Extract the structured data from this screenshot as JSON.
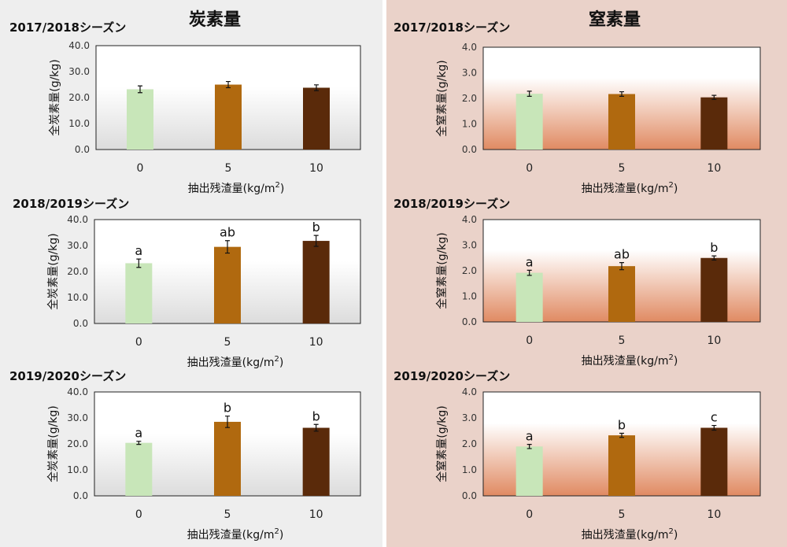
{
  "columns": [
    {
      "title": "炭素量",
      "gradient": [
        "#ffffff",
        "#dcdcdc"
      ]
    },
    {
      "title": "窒素量",
      "gradient": [
        "#ffffff",
        "#e08a62"
      ]
    }
  ],
  "bar_colors": [
    "#c8e6b9",
    "#b0690f",
    "#5a2a0a"
  ],
  "chart_data": [
    {
      "type": "bar",
      "title": "2017/2018シーズン",
      "column": 0,
      "categories": [
        "0",
        "5",
        "10"
      ],
      "values": [
        23.2,
        25.0,
        23.8
      ],
      "errors": [
        1.3,
        1.2,
        1.1
      ],
      "labels": [
        "",
        "",
        ""
      ],
      "ylim": [
        0,
        40
      ],
      "yticks": [
        "0.0",
        "10.0",
        "20.0",
        "30.0",
        "40.0"
      ],
      "ylabel": "全炭素量(g/kg)",
      "xlabel": "抽出残渣量(kg/m2)"
    },
    {
      "type": "bar",
      "title": "2018/2019シーズン",
      "column": 0,
      "categories": [
        "0",
        "5",
        "10"
      ],
      "values": [
        23.2,
        29.5,
        31.8
      ],
      "errors": [
        1.6,
        2.4,
        2.1
      ],
      "labels": [
        "a",
        "ab",
        "b"
      ],
      "ylim": [
        0,
        40
      ],
      "yticks": [
        "0.0",
        "10.0",
        "20.0",
        "30.0",
        "40.0"
      ],
      "ylabel": "全炭素量(g/kg)",
      "xlabel": "抽出残渣量(kg/m2)"
    },
    {
      "type": "bar",
      "title": "2019/2020シーズン",
      "column": 0,
      "categories": [
        "0",
        "5",
        "10"
      ],
      "values": [
        20.4,
        28.5,
        26.2
      ],
      "errors": [
        0.6,
        2.2,
        1.3
      ],
      "labels": [
        "a",
        "b",
        "b"
      ],
      "ylim": [
        0,
        40
      ],
      "yticks": [
        "0.0",
        "10.0",
        "20.0",
        "30.0",
        "40.0"
      ],
      "ylabel": "全炭素量(g/kg)",
      "xlabel": "抽出残渣量(kg/m2)"
    },
    {
      "type": "bar",
      "title": "2017/2018シーズン",
      "column": 1,
      "categories": [
        "0",
        "5",
        "10"
      ],
      "values": [
        2.18,
        2.17,
        2.04
      ],
      "errors": [
        0.1,
        0.09,
        0.08
      ],
      "labels": [
        "",
        "",
        ""
      ],
      "ylim": [
        0,
        4
      ],
      "yticks": [
        "0.0",
        "1.0",
        "2.0",
        "3.0",
        "4.0"
      ],
      "ylabel": "全窒素量(g/kg)",
      "xlabel": "抽出残渣量(kg/m2)"
    },
    {
      "type": "bar",
      "title": "2018/2019シーズン",
      "column": 1,
      "categories": [
        "0",
        "5",
        "10"
      ],
      "values": [
        1.92,
        2.18,
        2.5
      ],
      "errors": [
        0.1,
        0.14,
        0.08
      ],
      "labels": [
        "a",
        "ab",
        "b"
      ],
      "ylim": [
        0,
        4
      ],
      "yticks": [
        "0.0",
        "1.0",
        "2.0",
        "3.0",
        "4.0"
      ],
      "ylabel": "全窒素量(g/kg)",
      "xlabel": "抽出残渣量(kg/m2)"
    },
    {
      "type": "bar",
      "title": "2019/2020シーズン",
      "column": 1,
      "categories": [
        "0",
        "5",
        "10"
      ],
      "values": [
        1.9,
        2.33,
        2.62
      ],
      "errors": [
        0.08,
        0.08,
        0.09
      ],
      "labels": [
        "a",
        "b",
        "c"
      ],
      "ylim": [
        0,
        4
      ],
      "yticks": [
        "0.0",
        "1.0",
        "2.0",
        "3.0",
        "4.0"
      ],
      "ylabel": "全窒素量(g/kg)",
      "xlabel": "抽出残渣量(kg/m2)"
    }
  ]
}
